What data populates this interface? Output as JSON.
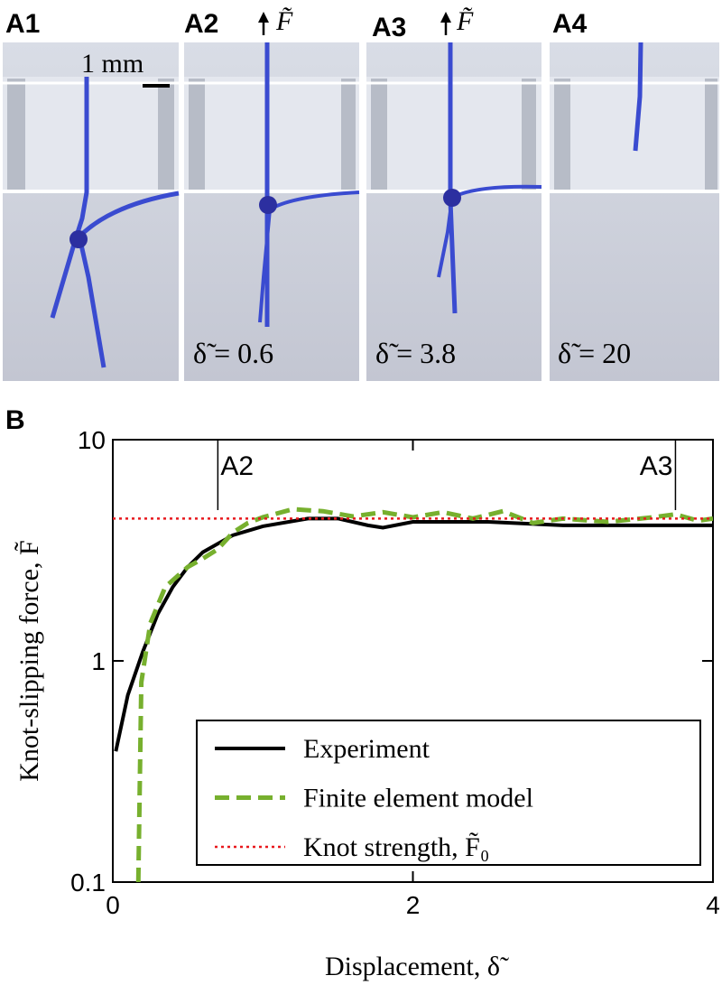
{
  "panels": [
    {
      "label": "A1",
      "scale_bar": "1 mm"
    },
    {
      "label": "A2",
      "force": "F̃",
      "displacement": "δ̃ = 0.6"
    },
    {
      "label": "A3",
      "force": "F̃",
      "displacement": "δ̃ = 3.8"
    },
    {
      "label": "A4",
      "displacement": "δ̃ = 20"
    }
  ],
  "panel_b_label": "B",
  "chart_data": {
    "type": "line",
    "x_label": "Displacement, δ̃",
    "y_label": "Knot-slipping force, F̃",
    "xlim": [
      0,
      4
    ],
    "xticks": [
      0,
      2,
      4
    ],
    "ylim": [
      0.1,
      10
    ],
    "yticks": [
      0.1,
      1,
      10
    ],
    "y_scale": "log",
    "legend": "lower right",
    "annotations": [
      {
        "text": "A2",
        "x": 0.7
      },
      {
        "text": "A3",
        "x": 3.75
      }
    ],
    "series": [
      {
        "name": "Experiment",
        "color": "#000000",
        "style": "solid",
        "x": [
          0.02,
          0.1,
          0.2,
          0.3,
          0.4,
          0.5,
          0.6,
          0.8,
          1.0,
          1.3,
          1.5,
          1.7,
          1.8,
          2.0,
          2.5,
          3.0,
          3.5,
          4.0
        ],
        "values": [
          0.39,
          0.7,
          1.1,
          1.63,
          2.16,
          2.66,
          3.1,
          3.7,
          4.06,
          4.4,
          4.4,
          4.1,
          4.0,
          4.25,
          4.25,
          4.1,
          4.1,
          4.1
        ]
      },
      {
        "name": "Finite element model",
        "color": "#77b02e",
        "style": "dashed",
        "x": [
          0.17,
          0.19,
          0.25,
          0.35,
          0.5,
          0.6,
          0.7,
          0.8,
          0.9,
          1.0,
          1.2,
          1.4,
          1.6,
          1.8,
          2.0,
          2.2,
          2.4,
          2.6,
          2.8,
          3.0,
          3.3,
          3.6,
          3.75,
          3.9,
          4.0
        ],
        "values": [
          0.1,
          0.8,
          1.48,
          2.16,
          2.66,
          2.9,
          3.2,
          3.8,
          4.2,
          4.46,
          4.85,
          4.75,
          4.5,
          4.7,
          4.46,
          4.7,
          4.4,
          4.75,
          4.2,
          4.4,
          4.25,
          4.46,
          4.6,
          4.3,
          4.4
        ]
      },
      {
        "name": "Knot strength, F̃₀",
        "color": "#e8191e",
        "style": "dotted",
        "x": [
          0,
          4
        ],
        "values": [
          4.4,
          4.4
        ]
      }
    ]
  }
}
